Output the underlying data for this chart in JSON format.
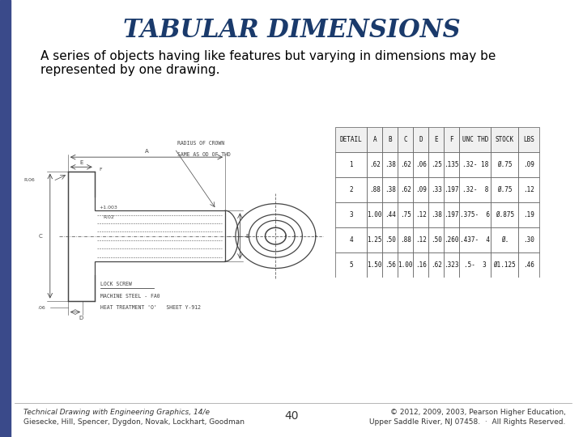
{
  "title": "TABULAR DIMENSIONS",
  "title_color": "#1a3a6b",
  "title_fontsize": 22,
  "subtitle": "A series of objects having like features but varying in dimensions may be\nrepresented by one drawing.",
  "subtitle_fontsize": 11,
  "bg_color": "#ffffff",
  "left_bar_color": "#3a4a8a",
  "footer_left_line1": "Technical Drawing with Engineering Graphics, 14/e",
  "footer_left_line2": "Giesecke, Hill, Spencer, Dygdon, Novak, Lockhart, Goodman",
  "footer_center": "40",
  "footer_right_line1": "© 2012, 2009, 2003, Pearson Higher Education,",
  "footer_right_line2": "Upper Saddle River, NJ 07458.  ·  All Rights Reserved.",
  "table_headers": [
    "DETAIL",
    "A",
    "B",
    "C",
    "D",
    "E",
    "F",
    "UNC THD",
    "STOCK",
    "LBS"
  ],
  "table_rows": [
    [
      "1",
      ".62",
      ".38",
      ".62",
      ".06",
      ".25",
      ".135",
      ".32- 18",
      "Ø.75",
      ".09"
    ],
    [
      "2",
      ".88",
      ".38",
      ".62",
      ".09",
      ".33",
      ".197",
      ".32-  8",
      "Ø.75",
      ".12"
    ],
    [
      "3",
      "1.00",
      ".44",
      ".75",
      ".12",
      ".38",
      ".197",
      ".375-  6",
      "Ø.875",
      ".19"
    ],
    [
      "4",
      "1.25",
      ".50",
      ".88",
      ".12",
      ".50",
      ".260",
      ".437-  4",
      "Ø.",
      ".30"
    ],
    [
      "5",
      "1.50",
      ".56",
      "1.00",
      ".16",
      ".62",
      ".323",
      ".5-  3",
      "Ø1.125",
      ".46"
    ]
  ]
}
